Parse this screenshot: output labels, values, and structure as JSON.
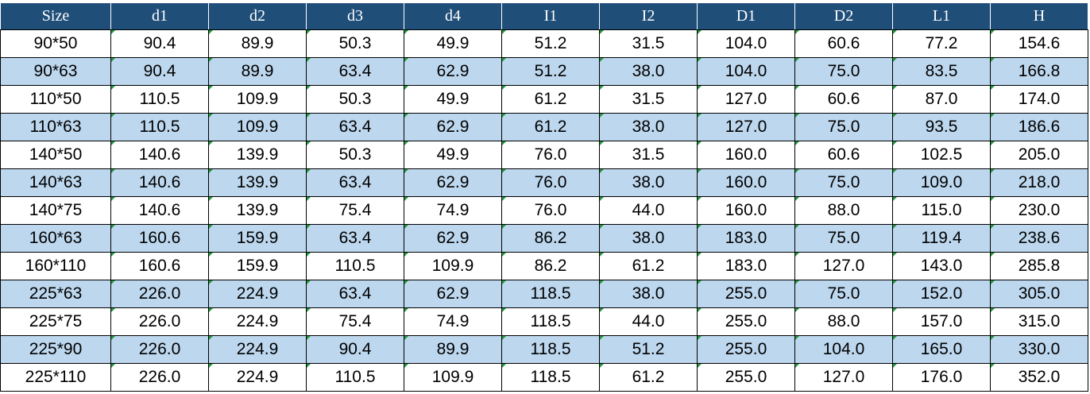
{
  "table": {
    "header": [
      "Size",
      "d1",
      "d2",
      "d3",
      "d4",
      "I1",
      "I2",
      "D1",
      "D2",
      "L1",
      "H"
    ],
    "rows": [
      [
        "90*50",
        "90.4",
        "89.9",
        "50.3",
        "49.9",
        "51.2",
        "31.5",
        "104.0",
        "60.6",
        "77.2",
        "154.6"
      ],
      [
        "90*63",
        "90.4",
        "89.9",
        "63.4",
        "62.9",
        "51.2",
        "38.0",
        "104.0",
        "75.0",
        "83.5",
        "166.8"
      ],
      [
        "110*50",
        "110.5",
        "109.9",
        "50.3",
        "49.9",
        "61.2",
        "31.5",
        "127.0",
        "60.6",
        "87.0",
        "174.0"
      ],
      [
        "110*63",
        "110.5",
        "109.9",
        "63.4",
        "62.9",
        "61.2",
        "38.0",
        "127.0",
        "75.0",
        "93.5",
        "186.6"
      ],
      [
        "140*50",
        "140.6",
        "139.9",
        "50.3",
        "49.9",
        "76.0",
        "31.5",
        "160.0",
        "60.6",
        "102.5",
        "205.0"
      ],
      [
        "140*63",
        "140.6",
        "139.9",
        "63.4",
        "62.9",
        "76.0",
        "38.0",
        "160.0",
        "75.0",
        "109.0",
        "218.0"
      ],
      [
        "140*75",
        "140.6",
        "139.9",
        "75.4",
        "74.9",
        "76.0",
        "44.0",
        "160.0",
        "88.0",
        "115.0",
        "230.0"
      ],
      [
        "160*63",
        "160.6",
        "159.9",
        "63.4",
        "62.9",
        "86.2",
        "38.0",
        "183.0",
        "75.0",
        "119.4",
        "238.6"
      ],
      [
        "160*110",
        "160.6",
        "159.9",
        "110.5",
        "109.9",
        "86.2",
        "61.2",
        "183.0",
        "127.0",
        "143.0",
        "285.8"
      ],
      [
        "225*63",
        "226.0",
        "224.9",
        "63.4",
        "62.9",
        "118.5",
        "38.0",
        "255.0",
        "75.0",
        "152.0",
        "305.0"
      ],
      [
        "225*75",
        "226.0",
        "224.9",
        "75.4",
        "74.9",
        "118.5",
        "44.0",
        "255.0",
        "88.0",
        "157.0",
        "315.0"
      ],
      [
        "225*90",
        "226.0",
        "224.9",
        "90.4",
        "89.9",
        "118.5",
        "51.2",
        "255.0",
        "104.0",
        "165.0",
        "330.0"
      ],
      [
        "225*110",
        "226.0",
        "224.9",
        "110.5",
        "109.9",
        "118.5",
        "61.2",
        "255.0",
        "127.0",
        "176.0",
        "352.0"
      ]
    ]
  }
}
